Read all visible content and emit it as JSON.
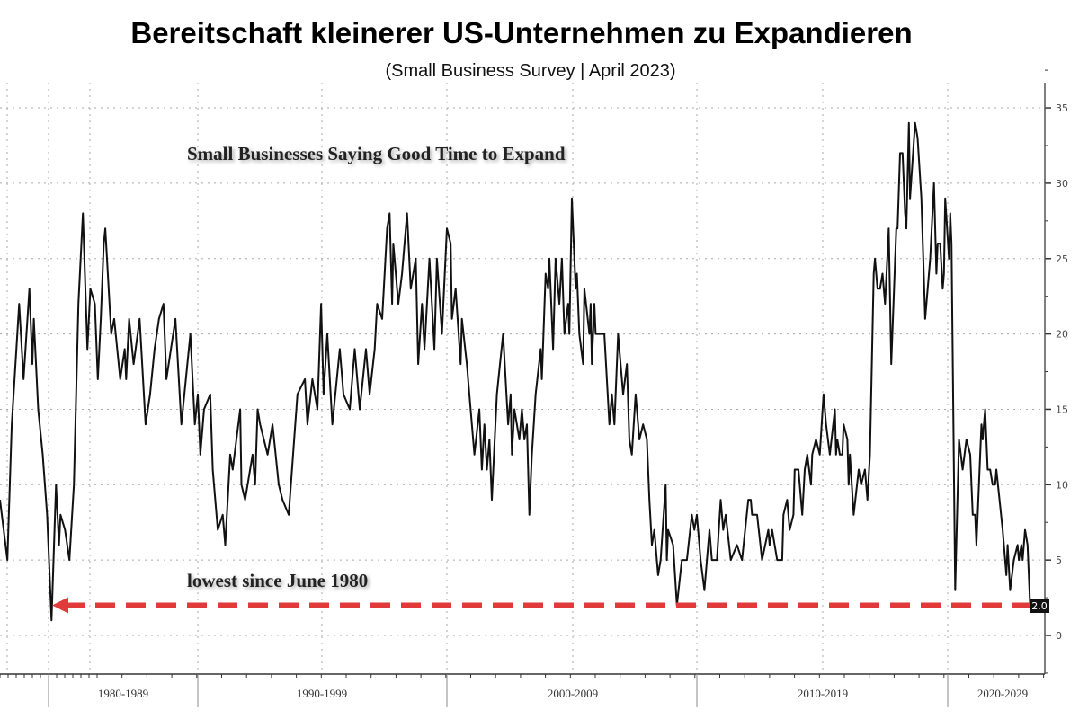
{
  "title": "Bereitschaft kleinerer US-Unternehmen zu Expandieren",
  "subtitle": "(Small Business Survey | April 2023)",
  "chart_data": {
    "type": "line",
    "title": "Small Businesses Saying Good Time to Expand",
    "annotation": "lowest since June 1980",
    "last_value_label": "2.0",
    "xlabel": "",
    "ylabel": "",
    "ylim": [
      -2.5,
      37
    ],
    "yticks": [
      0,
      5,
      10,
      15,
      20,
      25,
      30,
      35
    ],
    "xtick_labels": [
      "1980-1989",
      "1990-1999",
      "2000-2009",
      "2010-2019",
      "2020-2029"
    ],
    "grid": true,
    "reference_line": {
      "value": 2,
      "color": "#e03a3a",
      "style": "dashed-arrow"
    },
    "series": [
      {
        "name": "Small Businesses Saying Good Time to Expand",
        "color": "#111111",
        "points": [
          [
            1976.7,
            9
          ],
          [
            1977.2,
            5
          ],
          [
            1977.5,
            14
          ],
          [
            1978.0,
            22
          ],
          [
            1978.3,
            17
          ],
          [
            1978.7,
            23
          ],
          [
            1978.9,
            18
          ],
          [
            1979.0,
            21
          ],
          [
            1979.3,
            15
          ],
          [
            1979.6,
            12
          ],
          [
            1979.9,
            8
          ],
          [
            1980.2,
            1
          ],
          [
            1980.5,
            10
          ],
          [
            1980.7,
            6
          ],
          [
            1980.8,
            8
          ],
          [
            1981.1,
            7
          ],
          [
            1981.4,
            5
          ],
          [
            1981.7,
            10
          ],
          [
            1982.0,
            22
          ],
          [
            1982.3,
            28
          ],
          [
            1982.6,
            19
          ],
          [
            1982.8,
            23
          ],
          [
            1983.1,
            22
          ],
          [
            1983.3,
            17
          ],
          [
            1983.5,
            21
          ],
          [
            1983.7,
            26
          ],
          [
            1983.8,
            27
          ],
          [
            1984.2,
            20
          ],
          [
            1984.4,
            21
          ],
          [
            1984.8,
            17
          ],
          [
            1985.1,
            19
          ],
          [
            1985.2,
            17
          ],
          [
            1985.4,
            21
          ],
          [
            1985.7,
            18
          ],
          [
            1986.1,
            21
          ],
          [
            1986.5,
            14
          ],
          [
            1986.8,
            16
          ],
          [
            1987.1,
            19
          ],
          [
            1987.4,
            21
          ],
          [
            1987.7,
            22
          ],
          [
            1987.9,
            17
          ],
          [
            1988.2,
            19
          ],
          [
            1988.5,
            21
          ],
          [
            1988.9,
            14
          ],
          [
            1989.2,
            17
          ],
          [
            1989.5,
            20
          ],
          [
            1989.8,
            14
          ],
          [
            1990.0,
            16
          ],
          [
            1990.1,
            12
          ],
          [
            1990.25,
            15
          ],
          [
            1990.5,
            16
          ],
          [
            1990.6,
            11
          ],
          [
            1990.8,
            7
          ],
          [
            1991.0,
            8
          ],
          [
            1991.1,
            6
          ],
          [
            1991.3,
            12
          ],
          [
            1991.4,
            11
          ],
          [
            1991.55,
            13
          ],
          [
            1991.7,
            15
          ],
          [
            1991.75,
            10
          ],
          [
            1991.9,
            9
          ],
          [
            1992.2,
            12
          ],
          [
            1992.3,
            10
          ],
          [
            1992.4,
            15
          ],
          [
            1992.5,
            14
          ],
          [
            1992.8,
            12
          ],
          [
            1993.0,
            14
          ],
          [
            1993.25,
            10
          ],
          [
            1993.4,
            9
          ],
          [
            1993.65,
            8
          ],
          [
            1994.0,
            16
          ],
          [
            1994.3,
            17
          ],
          [
            1994.4,
            14
          ],
          [
            1994.6,
            17
          ],
          [
            1994.8,
            15
          ],
          [
            1994.95,
            22
          ],
          [
            1995.05,
            16
          ],
          [
            1995.2,
            20
          ],
          [
            1995.4,
            14
          ],
          [
            1995.7,
            19
          ],
          [
            1995.85,
            16
          ],
          [
            1996.1,
            15
          ],
          [
            1996.3,
            19
          ],
          [
            1996.5,
            15
          ],
          [
            1996.75,
            19
          ],
          [
            1996.9,
            16
          ],
          [
            1997.1,
            19
          ],
          [
            1997.2,
            22
          ],
          [
            1997.4,
            21
          ],
          [
            1997.6,
            27
          ],
          [
            1997.7,
            28
          ],
          [
            1997.8,
            22
          ],
          [
            1997.85,
            26
          ],
          [
            1998.05,
            22
          ],
          [
            1998.2,
            24
          ],
          [
            1998.4,
            28
          ],
          [
            1998.55,
            23
          ],
          [
            1998.75,
            25
          ],
          [
            1998.85,
            18
          ],
          [
            1999.0,
            22
          ],
          [
            1999.1,
            19
          ],
          [
            1999.3,
            25
          ],
          [
            1999.5,
            19
          ],
          [
            1999.6,
            25
          ],
          [
            1999.8,
            20
          ],
          [
            2000.0,
            27
          ],
          [
            2000.15,
            26
          ],
          [
            2000.2,
            21
          ],
          [
            2000.35,
            23
          ],
          [
            2000.55,
            18
          ],
          [
            2000.6,
            21
          ],
          [
            2000.8,
            18
          ],
          [
            2001.1,
            12
          ],
          [
            2001.3,
            15
          ],
          [
            2001.4,
            11
          ],
          [
            2001.5,
            14
          ],
          [
            2001.6,
            11
          ],
          [
            2001.7,
            13
          ],
          [
            2001.8,
            9
          ],
          [
            2002.0,
            16
          ],
          [
            2002.25,
            20
          ],
          [
            2002.45,
            14
          ],
          [
            2002.55,
            16
          ],
          [
            2002.6,
            12
          ],
          [
            2002.7,
            15
          ],
          [
            2002.9,
            13
          ],
          [
            2003.0,
            15
          ],
          [
            2003.1,
            13
          ],
          [
            2003.2,
            14
          ],
          [
            2003.3,
            8
          ],
          [
            2003.4,
            12
          ],
          [
            2003.55,
            16
          ],
          [
            2003.75,
            19
          ],
          [
            2003.8,
            17
          ],
          [
            2003.95,
            24
          ],
          [
            2004.05,
            23
          ],
          [
            2004.1,
            25
          ],
          [
            2004.25,
            19
          ],
          [
            2004.35,
            25
          ],
          [
            2004.5,
            22
          ],
          [
            2004.6,
            25
          ],
          [
            2004.7,
            20
          ],
          [
            2004.85,
            22
          ],
          [
            2004.9,
            20
          ],
          [
            2005.0,
            29
          ],
          [
            2005.15,
            23
          ],
          [
            2005.2,
            24
          ],
          [
            2005.3,
            20
          ],
          [
            2005.45,
            18
          ],
          [
            2005.5,
            23
          ],
          [
            2005.7,
            20
          ],
          [
            2005.75,
            22
          ],
          [
            2005.8,
            18
          ],
          [
            2005.9,
            22
          ],
          [
            2005.95,
            20
          ],
          [
            2006.3,
            20
          ],
          [
            2006.5,
            14
          ],
          [
            2006.6,
            16
          ],
          [
            2006.7,
            14
          ],
          [
            2006.85,
            20
          ],
          [
            2007.05,
            16
          ],
          [
            2007.2,
            18
          ],
          [
            2007.3,
            13
          ],
          [
            2007.4,
            12
          ],
          [
            2007.55,
            16
          ],
          [
            2007.7,
            13
          ],
          [
            2007.85,
            14
          ],
          [
            2008.0,
            13
          ],
          [
            2008.1,
            9
          ],
          [
            2008.2,
            6
          ],
          [
            2008.3,
            7
          ],
          [
            2008.45,
            4
          ],
          [
            2008.55,
            5
          ],
          [
            2008.75,
            10
          ],
          [
            2008.8,
            5
          ],
          [
            2008.85,
            7
          ],
          [
            2009.05,
            6
          ],
          [
            2009.2,
            2
          ],
          [
            2009.4,
            5
          ],
          [
            2009.6,
            5
          ],
          [
            2009.8,
            8
          ],
          [
            2009.9,
            7
          ],
          [
            2010.0,
            8
          ],
          [
            2010.15,
            5
          ],
          [
            2010.3,
            3
          ],
          [
            2010.4,
            5
          ],
          [
            2010.5,
            7
          ],
          [
            2010.6,
            5
          ],
          [
            2010.8,
            5
          ],
          [
            2010.95,
            9
          ],
          [
            2011.05,
            7
          ],
          [
            2011.15,
            8
          ],
          [
            2011.35,
            5
          ],
          [
            2011.6,
            6
          ],
          [
            2011.8,
            5
          ],
          [
            2012.05,
            9
          ],
          [
            2012.15,
            9
          ],
          [
            2012.2,
            8
          ],
          [
            2012.4,
            8
          ],
          [
            2012.6,
            5
          ],
          [
            2012.85,
            7
          ],
          [
            2012.9,
            6
          ],
          [
            2013.0,
            7
          ],
          [
            2013.2,
            5
          ],
          [
            2013.4,
            5
          ],
          [
            2013.45,
            8
          ],
          [
            2013.6,
            9
          ],
          [
            2013.7,
            7
          ],
          [
            2013.85,
            8
          ],
          [
            2013.9,
            11
          ],
          [
            2014.05,
            11
          ],
          [
            2014.2,
            8
          ],
          [
            2014.3,
            11
          ],
          [
            2014.4,
            12
          ],
          [
            2014.55,
            10
          ],
          [
            2014.6,
            12
          ],
          [
            2014.75,
            13
          ],
          [
            2014.9,
            12
          ],
          [
            2015.05,
            16
          ],
          [
            2015.15,
            14
          ],
          [
            2015.3,
            12
          ],
          [
            2015.5,
            15
          ],
          [
            2015.55,
            12
          ],
          [
            2015.6,
            13
          ],
          [
            2015.7,
            12
          ],
          [
            2015.8,
            12
          ],
          [
            2015.85,
            14
          ],
          [
            2016.0,
            13
          ],
          [
            2016.05,
            10
          ],
          [
            2016.1,
            12
          ],
          [
            2016.25,
            8
          ],
          [
            2016.45,
            11
          ],
          [
            2016.55,
            10
          ],
          [
            2016.7,
            11
          ],
          [
            2016.8,
            9
          ],
          [
            2016.9,
            12
          ],
          [
            2017.05,
            24
          ],
          [
            2017.1,
            25
          ],
          [
            2017.2,
            23
          ],
          [
            2017.3,
            23
          ],
          [
            2017.4,
            24
          ],
          [
            2017.5,
            22
          ],
          [
            2017.65,
            27
          ],
          [
            2017.75,
            18
          ],
          [
            2017.95,
            27
          ],
          [
            2018.0,
            27
          ],
          [
            2018.1,
            32
          ],
          [
            2018.2,
            32
          ],
          [
            2018.3,
            28
          ],
          [
            2018.35,
            27
          ],
          [
            2018.45,
            34
          ],
          [
            2018.5,
            29
          ],
          [
            2018.7,
            34
          ],
          [
            2018.8,
            33
          ],
          [
            2018.95,
            29
          ],
          [
            2019.1,
            21
          ],
          [
            2019.3,
            25
          ],
          [
            2019.45,
            30
          ],
          [
            2019.55,
            24
          ],
          [
            2019.6,
            26
          ],
          [
            2019.7,
            26
          ],
          [
            2019.8,
            23
          ],
          [
            2019.85,
            24
          ],
          [
            2019.9,
            29
          ],
          [
            2020.05,
            25
          ],
          [
            2020.1,
            28
          ],
          [
            2020.15,
            26
          ],
          [
            2020.3,
            3
          ],
          [
            2020.45,
            13
          ],
          [
            2020.6,
            11
          ],
          [
            2020.75,
            13
          ],
          [
            2020.9,
            12
          ],
          [
            2021.0,
            8
          ],
          [
            2021.1,
            8
          ],
          [
            2021.15,
            6
          ],
          [
            2021.35,
            14
          ],
          [
            2021.4,
            13
          ],
          [
            2021.5,
            15
          ],
          [
            2021.6,
            11
          ],
          [
            2021.7,
            11
          ],
          [
            2021.8,
            10
          ],
          [
            2021.9,
            10
          ],
          [
            2021.95,
            11
          ],
          [
            2022.2,
            7
          ],
          [
            2022.35,
            4
          ],
          [
            2022.4,
            6
          ],
          [
            2022.5,
            3
          ],
          [
            2022.65,
            5
          ],
          [
            2022.8,
            6
          ],
          [
            2022.85,
            5
          ],
          [
            2022.95,
            6
          ],
          [
            2023.0,
            5
          ],
          [
            2023.1,
            7
          ],
          [
            2023.2,
            6
          ],
          [
            2023.3,
            2
          ]
        ]
      }
    ]
  }
}
